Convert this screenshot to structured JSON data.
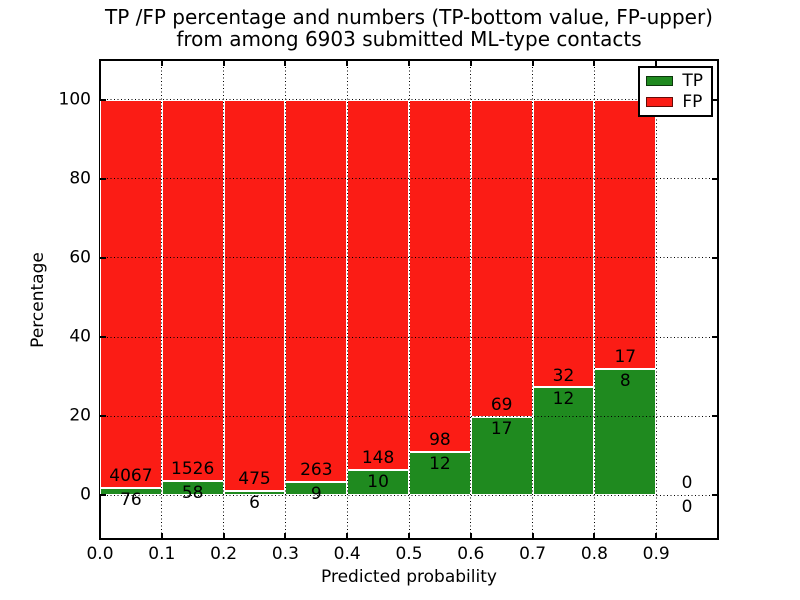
{
  "chart_data": {
    "type": "bar",
    "stacked": true,
    "title_line1": "TP /FP percentage and numbers (TP-bottom value, FP-upper)",
    "title_line2": "from among 6903 submitted ML-type contacts",
    "xlabel": "Predicted probability",
    "ylabel": "Percentage",
    "bin_start": [
      0.0,
      0.1,
      0.2,
      0.3,
      0.4,
      0.5,
      0.6,
      0.7,
      0.8,
      0.9
    ],
    "bin_width": 0.1,
    "series": [
      {
        "name": "TP",
        "color": "#1f8a1f",
        "values": [
          76,
          58,
          6,
          9,
          10,
          12,
          17,
          12,
          8,
          0
        ]
      },
      {
        "name": "FP",
        "color": "#fb1c15",
        "values": [
          4067,
          1526,
          475,
          263,
          148,
          98,
          69,
          32,
          17,
          0
        ]
      }
    ],
    "xticks": [
      {
        "v": 0.0,
        "label": "0.0"
      },
      {
        "v": 0.1,
        "label": "0.1"
      },
      {
        "v": 0.2,
        "label": "0.2"
      },
      {
        "v": 0.3,
        "label": "0.3"
      },
      {
        "v": 0.4,
        "label": "0.4"
      },
      {
        "v": 0.5,
        "label": "0.5"
      },
      {
        "v": 0.6,
        "label": "0.6"
      },
      {
        "v": 0.7,
        "label": "0.7"
      },
      {
        "v": 0.8,
        "label": "0.8"
      },
      {
        "v": 0.9,
        "label": "0.9"
      }
    ],
    "yticks": [
      {
        "v": 0,
        "label": "0"
      },
      {
        "v": 20,
        "label": "20"
      },
      {
        "v": 40,
        "label": "40"
      },
      {
        "v": 60,
        "label": "60"
      },
      {
        "v": 80,
        "label": "80"
      },
      {
        "v": 100,
        "label": "100"
      }
    ],
    "xlim": [
      0.0,
      1.0
    ],
    "ylim": [
      -11,
      110
    ],
    "grid_style": "dotted",
    "grid_color": "#000000",
    "legend_position": "upper right"
  }
}
